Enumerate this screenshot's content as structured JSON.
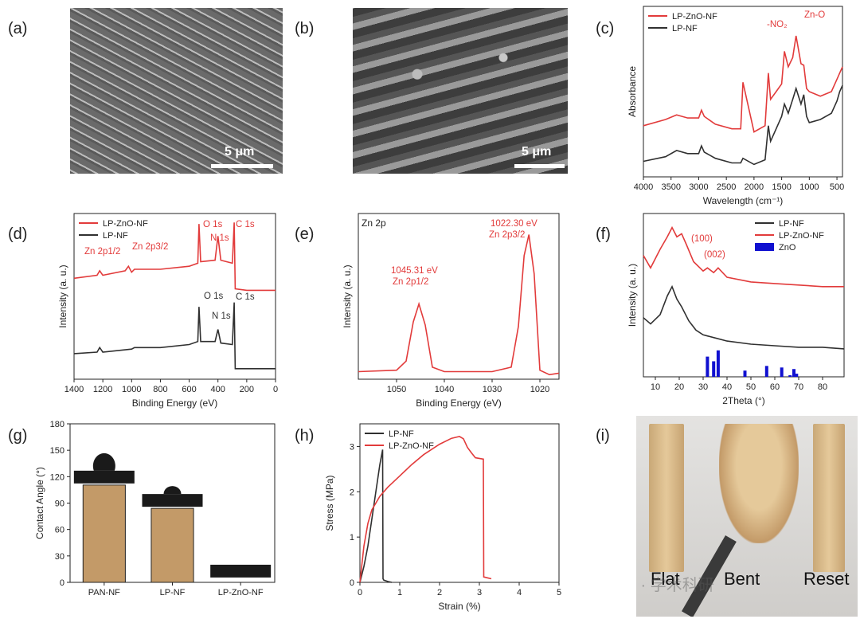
{
  "panel_labels": [
    "(a)",
    "(b)",
    "(c)",
    "(d)",
    "(e)",
    "(f)",
    "(g)",
    "(h)",
    "(i)"
  ],
  "images": {
    "a": {
      "scale_bar": "5 μm"
    },
    "b": {
      "scale_bar": "5 μm"
    },
    "i": {
      "labels": [
        "Flat",
        "Bent",
        "Reset"
      ],
      "watermark": "公众号 · 学术科研"
    }
  },
  "colors": {
    "red": "#e23b3b",
    "black": "#303030",
    "blue": "#1010d0",
    "bar": "#c39a68"
  },
  "chart_data": [
    {
      "panel": "c",
      "type": "line",
      "xlabel": "Wavelength (cm⁻¹)",
      "ylabel": "Absorbance",
      "xlim": [
        4000,
        400
      ],
      "x_reversed": true,
      "xticks": [
        4000,
        3500,
        3000,
        2500,
        2000,
        1500,
        1000,
        500
      ],
      "legend": "top-left",
      "series": [
        {
          "name": "LP-ZnO-NF",
          "color": "#e23b3b",
          "x": [
            4000,
            3600,
            3400,
            3200,
            3000,
            2950,
            2900,
            2700,
            2400,
            2240,
            2200,
            2000,
            1800,
            1740,
            1700,
            1600,
            1500,
            1450,
            1380,
            1300,
            1240,
            1150,
            1100,
            1050,
            1000,
            800,
            600,
            500,
            450,
            400
          ],
          "y": [
            0.28,
            0.32,
            0.35,
            0.33,
            0.33,
            0.38,
            0.34,
            0.29,
            0.26,
            0.26,
            0.56,
            0.24,
            0.28,
            0.62,
            0.45,
            0.5,
            0.55,
            0.76,
            0.66,
            0.72,
            0.86,
            0.68,
            0.67,
            0.52,
            0.5,
            0.47,
            0.5,
            0.58,
            0.62,
            0.66
          ]
        },
        {
          "name": "LP-NF",
          "color": "#303030",
          "x": [
            4000,
            3600,
            3400,
            3200,
            3000,
            2950,
            2900,
            2700,
            2400,
            2240,
            2200,
            2000,
            1800,
            1740,
            1700,
            1600,
            1500,
            1450,
            1380,
            1300,
            1240,
            1150,
            1100,
            1050,
            1000,
            800,
            600,
            500,
            450,
            400
          ],
          "y": [
            0.05,
            0.08,
            0.12,
            0.1,
            0.1,
            0.15,
            0.11,
            0.07,
            0.04,
            0.04,
            0.07,
            0.03,
            0.06,
            0.28,
            0.18,
            0.26,
            0.34,
            0.42,
            0.36,
            0.45,
            0.52,
            0.42,
            0.48,
            0.34,
            0.3,
            0.32,
            0.36,
            0.44,
            0.5,
            0.54
          ]
        }
      ],
      "annotations": [
        "-NO₂",
        "Zn-O"
      ]
    },
    {
      "panel": "d",
      "type": "line",
      "xlabel": "Binding Energy (eV)",
      "ylabel": "Intensity (a. u.)",
      "xlim": [
        1400,
        0
      ],
      "x_reversed": true,
      "xticks": [
        1400,
        1200,
        1000,
        800,
        600,
        400,
        200,
        0
      ],
      "legend": "top-left",
      "series": [
        {
          "name": "LP-ZnO-NF",
          "color": "#e23b3b",
          "x": [
            1400,
            1240,
            1222,
            1200,
            1045,
            1022,
            1000,
            980,
            800,
            600,
            540,
            532,
            520,
            420,
            400,
            380,
            300,
            287,
            280,
            200,
            100,
            0
          ],
          "y": [
            0.62,
            0.64,
            0.67,
            0.64,
            0.67,
            0.7,
            0.66,
            0.68,
            0.68,
            0.7,
            0.72,
            0.98,
            0.73,
            0.74,
            0.9,
            0.74,
            0.72,
            0.99,
            0.55,
            0.54,
            0.54,
            0.54
          ]
        },
        {
          "name": "LP-NF",
          "color": "#303030",
          "x": [
            1400,
            1240,
            1222,
            1200,
            1000,
            980,
            800,
            600,
            540,
            532,
            520,
            420,
            400,
            380,
            300,
            287,
            280,
            200,
            100,
            0
          ],
          "y": [
            0.12,
            0.13,
            0.16,
            0.13,
            0.15,
            0.16,
            0.16,
            0.18,
            0.2,
            0.43,
            0.2,
            0.2,
            0.28,
            0.19,
            0.18,
            0.46,
            0.02,
            0.02,
            0.02,
            0.02
          ]
        }
      ],
      "annotations": [
        "Zn 2p1/2",
        "Zn 2p3/2",
        "O 1s",
        "N 1s",
        "C 1s",
        "O 1s",
        "N 1s",
        "C 1s"
      ]
    },
    {
      "panel": "e",
      "type": "line",
      "title": "Zn 2p",
      "xlabel": "Binding Energy (eV)",
      "ylabel": "Intensity (a. u.)",
      "xlim": [
        1058,
        1016
      ],
      "x_reversed": true,
      "xticks": [
        1050,
        1040,
        1030,
        1020
      ],
      "series": [
        {
          "name": "Zn 2p",
          "color": "#e23b3b",
          "x": [
            1058,
            1050,
            1048,
            1046.5,
            1045.31,
            1044,
            1042.5,
            1040,
            1030,
            1026,
            1024.5,
            1023.3,
            1022.3,
            1021.2,
            1020,
            1018,
            1016
          ],
          "y": [
            0.05,
            0.06,
            0.12,
            0.38,
            0.5,
            0.36,
            0.08,
            0.05,
            0.05,
            0.08,
            0.35,
            0.82,
            0.96,
            0.7,
            0.06,
            0.03,
            0.04
          ]
        }
      ],
      "annotations": [
        "1045.31 eV",
        "Zn 2p1/2",
        "1022.30 eV",
        "Zn 2p3/2"
      ]
    },
    {
      "panel": "f",
      "type": "line",
      "xlabel": "2Theta (°)",
      "ylabel": "Intensity (a. u.)",
      "xlim": [
        5,
        89
      ],
      "xticks": [
        10,
        20,
        30,
        40,
        50,
        60,
        70,
        80
      ],
      "legend": "top-right",
      "series": [
        {
          "name": "LP-NF",
          "color": "#303030",
          "x": [
            5,
            8,
            12,
            15,
            17,
            19,
            21,
            24,
            27,
            30,
            35,
            40,
            50,
            60,
            70,
            80,
            89
          ],
          "y": [
            0.38,
            0.34,
            0.4,
            0.52,
            0.58,
            0.5,
            0.45,
            0.36,
            0.3,
            0.27,
            0.25,
            0.23,
            0.21,
            0.2,
            0.19,
            0.19,
            0.18
          ]
        },
        {
          "name": "LP-ZnO-NF",
          "color": "#e23b3b",
          "x": [
            5,
            8,
            12,
            15,
            17,
            19,
            21,
            23,
            26,
            30,
            31.8,
            34.4,
            36.3,
            40,
            50,
            60,
            70,
            80,
            89
          ],
          "y": [
            0.78,
            0.7,
            0.82,
            0.9,
            0.96,
            0.9,
            0.92,
            0.85,
            0.74,
            0.68,
            0.7,
            0.67,
            0.7,
            0.64,
            0.61,
            0.6,
            0.59,
            0.58,
            0.58
          ]
        },
        {
          "name": "ZnO",
          "color": "#1010d0",
          "type": "stick",
          "x": [
            31.8,
            34.4,
            36.3,
            47.5,
            56.6,
            62.9,
            66.4,
            68.0,
            69.1
          ],
          "y": [
            0.13,
            0.1,
            0.17,
            0.04,
            0.07,
            0.06,
            0.01,
            0.05,
            0.02
          ]
        }
      ],
      "annotations": [
        "(100)",
        "(002)"
      ]
    },
    {
      "panel": "g",
      "type": "bar",
      "ylabel": "Contact Angle (°)",
      "ylim": [
        0,
        180
      ],
      "yticks": [
        0,
        30,
        60,
        90,
        120,
        150,
        180
      ],
      "categories": [
        "PAN-NF",
        "LP-NF",
        "LP-ZnO-NF"
      ],
      "values": [
        110.5,
        84,
        0
      ]
    },
    {
      "panel": "h",
      "type": "line",
      "xlabel": "Strain (%)",
      "ylabel": "Stress (MPa)",
      "xlim": [
        0,
        5
      ],
      "ylim": [
        0,
        3.5
      ],
      "xticks": [
        0,
        1,
        2,
        3,
        4,
        5
      ],
      "yticks": [
        0,
        1,
        2,
        3
      ],
      "legend": "top-left",
      "series": [
        {
          "name": "LP-NF",
          "color": "#303030",
          "x": [
            0,
            0.1,
            0.2,
            0.3,
            0.4,
            0.5,
            0.57,
            0.58,
            0.6,
            0.7,
            0.8
          ],
          "y": [
            0,
            0.35,
            0.8,
            1.4,
            2.0,
            2.6,
            2.93,
            0.08,
            0.05,
            0.02,
            0.0
          ]
        },
        {
          "name": "LP-ZnO-NF",
          "color": "#e23b3b",
          "x": [
            0,
            0.1,
            0.2,
            0.3,
            0.5,
            0.7,
            1.0,
            1.3,
            1.6,
            2.0,
            2.3,
            2.5,
            2.6,
            2.7,
            2.8,
            2.9,
            3.1,
            3.11,
            3.2,
            3.3
          ],
          "y": [
            0,
            0.8,
            1.3,
            1.6,
            1.9,
            2.1,
            2.35,
            2.6,
            2.82,
            3.05,
            3.18,
            3.22,
            3.17,
            2.98,
            2.86,
            2.75,
            2.72,
            0.12,
            0.1,
            0.08
          ]
        }
      ]
    }
  ]
}
